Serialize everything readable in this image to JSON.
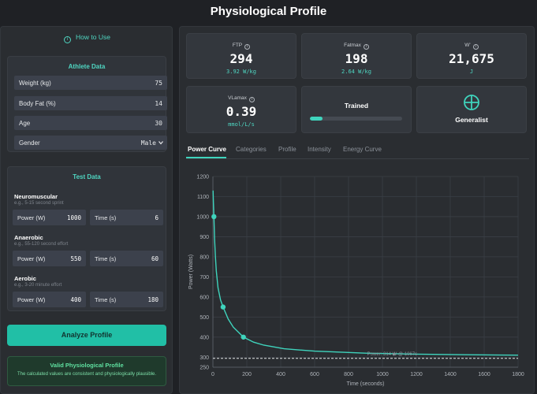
{
  "app": {
    "title": "Physiological Profile"
  },
  "left": {
    "how_to": "How to Use",
    "athlete": {
      "title": "Athlete Data",
      "fields": [
        {
          "label": "Weight (kg)",
          "value": "75"
        },
        {
          "label": "Body Fat (%)",
          "value": "14"
        },
        {
          "label": "Age",
          "value": "30"
        },
        {
          "label": "Gender",
          "value": "Male"
        }
      ]
    },
    "test": {
      "title": "Test Data",
      "sections": [
        {
          "title": "Neuromuscular",
          "subtitle": "e.g., 5-15 second sprint",
          "power_label": "Power (W)",
          "power": "1000",
          "time_label": "Time (s)",
          "time": "6"
        },
        {
          "title": "Anaerobic",
          "subtitle": "e.g., 55-120 second effort",
          "power_label": "Power (W)",
          "power": "550",
          "time_label": "Time (s)",
          "time": "60"
        },
        {
          "title": "Aerobic",
          "subtitle": "e.g., 3-20 minute effort",
          "power_label": "Power (W)",
          "power": "400",
          "time_label": "Time (s)",
          "time": "180"
        }
      ]
    },
    "analyze_label": "Analyze Profile",
    "valid": {
      "title": "Valid Physiological Profile",
      "desc": "The calculated values are consistent and physiologically plausible."
    }
  },
  "metrics": {
    "ftp": {
      "name": "FTP",
      "value": "294",
      "sub": "3.92 W/kg"
    },
    "fatmax": {
      "name": "Fatmax",
      "value": "198",
      "sub": "2.64 W/kg"
    },
    "wprime": {
      "name": "W'",
      "value": "21,675",
      "sub": "J"
    },
    "vlamax": {
      "name": "VLamax",
      "value": "0.39",
      "sub": "mmol/L/s"
    },
    "level": {
      "label": "Trained",
      "progress": 0.14
    },
    "type": {
      "label": "Generalist",
      "icon": "crosshair-icon"
    }
  },
  "tabs": [
    "Power Curve",
    "Categories",
    "Profile",
    "Intensity",
    "Energy Curve"
  ],
  "colors": {
    "accent": "#3fd4bd",
    "panel": "#2a2d31",
    "valid": "#5fe0a0"
  },
  "chart_data": {
    "type": "line",
    "xlabel": "Time (seconds)",
    "ylabel": "Power (Watts)",
    "xlim": [
      0,
      1800
    ],
    "ylim": [
      250,
      1200
    ],
    "xticks": [
      0,
      200,
      400,
      600,
      800,
      1000,
      1200,
      1400,
      1600,
      1800
    ],
    "yticks": [
      250,
      300,
      400,
      500,
      600,
      700,
      800,
      900,
      1000,
      1100,
      1200
    ],
    "series": [
      {
        "x": [
          1,
          3,
          6,
          10,
          15,
          20,
          30,
          45,
          60,
          90,
          120,
          180,
          240,
          300,
          420,
          600,
          900,
          1200,
          1500,
          1800
        ],
        "values": [
          1130,
          1075,
          1000,
          890,
          800,
          730,
          645,
          585,
          550,
          490,
          450,
          400,
          375,
          360,
          342,
          330,
          320,
          315,
          312,
          310
        ]
      }
    ],
    "points": [
      {
        "x": 6,
        "y": 1000
      },
      {
        "x": 60,
        "y": 550
      },
      {
        "x": 180,
        "y": 400
      }
    ],
    "ftp_line": {
      "y": 294,
      "label": "Power: 314 W @ 1067s"
    }
  }
}
